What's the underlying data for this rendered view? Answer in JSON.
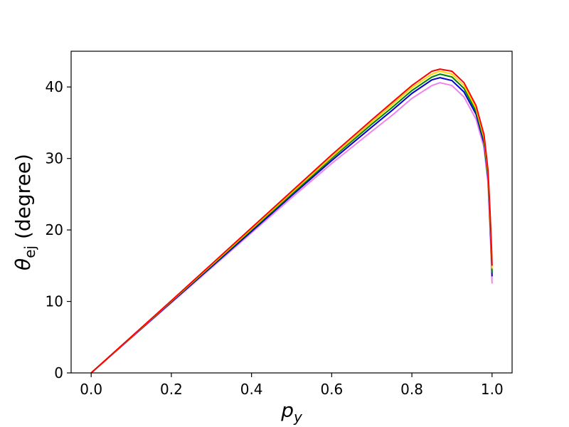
{
  "chart_data": {
    "type": "line",
    "xlabel": {
      "base": "p",
      "sub": "y"
    },
    "ylabel": {
      "base": "θ",
      "sub": "ej",
      "rest": " (degree)"
    },
    "xlim": [
      -0.05,
      1.05
    ],
    "ylim": [
      0,
      45
    ],
    "xticks": [
      0.0,
      0.2,
      0.4,
      0.6,
      0.8,
      1.0
    ],
    "xtick_labels": [
      "0.0",
      "0.2",
      "0.4",
      "0.6",
      "0.8",
      "1.0"
    ],
    "yticks": [
      0,
      10,
      20,
      30,
      40
    ],
    "ytick_labels": [
      "0",
      "10",
      "20",
      "30",
      "40"
    ],
    "grid": false,
    "legend": "none",
    "series": [
      {
        "color": "#ee82ee",
        "points": [
          [
            0.0,
            0.0
          ],
          [
            0.1,
            4.9
          ],
          [
            0.2,
            9.8
          ],
          [
            0.3,
            14.7
          ],
          [
            0.4,
            19.6
          ],
          [
            0.5,
            24.5
          ],
          [
            0.6,
            29.3
          ],
          [
            0.7,
            33.8
          ],
          [
            0.75,
            36.0
          ],
          [
            0.8,
            38.4
          ],
          [
            0.85,
            40.2
          ],
          [
            0.87,
            40.6
          ],
          [
            0.9,
            40.2
          ],
          [
            0.93,
            38.6
          ],
          [
            0.96,
            35.5
          ],
          [
            0.98,
            31.5
          ],
          [
            0.99,
            26.5
          ],
          [
            0.995,
            20.0
          ],
          [
            0.999,
            14.5
          ],
          [
            1.0,
            12.5
          ]
        ]
      },
      {
        "color": "#0000cd",
        "points": [
          [
            0.0,
            0.0
          ],
          [
            0.1,
            4.95
          ],
          [
            0.2,
            9.9
          ],
          [
            0.3,
            14.85
          ],
          [
            0.4,
            19.8
          ],
          [
            0.5,
            24.8
          ],
          [
            0.6,
            29.7
          ],
          [
            0.7,
            34.4
          ],
          [
            0.75,
            36.7
          ],
          [
            0.8,
            39.1
          ],
          [
            0.85,
            41.0
          ],
          [
            0.87,
            41.3
          ],
          [
            0.9,
            40.9
          ],
          [
            0.93,
            39.3
          ],
          [
            0.96,
            36.2
          ],
          [
            0.98,
            32.1
          ],
          [
            0.99,
            27.2
          ],
          [
            0.995,
            21.0
          ],
          [
            0.999,
            15.5
          ],
          [
            1.0,
            13.5
          ]
        ]
      },
      {
        "color": "#008000",
        "points": [
          [
            0.0,
            0.0
          ],
          [
            0.1,
            5.0
          ],
          [
            0.2,
            10.0
          ],
          [
            0.3,
            15.0
          ],
          [
            0.4,
            20.0
          ],
          [
            0.5,
            25.0
          ],
          [
            0.6,
            30.0
          ],
          [
            0.7,
            34.8
          ],
          [
            0.75,
            37.1
          ],
          [
            0.8,
            39.5
          ],
          [
            0.85,
            41.4
          ],
          [
            0.87,
            41.8
          ],
          [
            0.9,
            41.4
          ],
          [
            0.93,
            39.8
          ],
          [
            0.96,
            36.6
          ],
          [
            0.98,
            32.5
          ],
          [
            0.99,
            27.5
          ],
          [
            0.995,
            21.5
          ],
          [
            0.999,
            16.0
          ],
          [
            1.0,
            14.0
          ]
        ]
      },
      {
        "color": "#ffd700",
        "points": [
          [
            0.0,
            0.0
          ],
          [
            0.1,
            5.02
          ],
          [
            0.2,
            10.05
          ],
          [
            0.3,
            15.1
          ],
          [
            0.4,
            20.15
          ],
          [
            0.5,
            25.2
          ],
          [
            0.6,
            30.2
          ],
          [
            0.7,
            35.1
          ],
          [
            0.75,
            37.5
          ],
          [
            0.8,
            39.9
          ],
          [
            0.85,
            41.8
          ],
          [
            0.87,
            42.2
          ],
          [
            0.9,
            41.8
          ],
          [
            0.93,
            40.2
          ],
          [
            0.96,
            37.0
          ],
          [
            0.98,
            32.9
          ],
          [
            0.99,
            27.9
          ],
          [
            0.995,
            22.0
          ],
          [
            0.999,
            16.5
          ],
          [
            1.0,
            14.6
          ]
        ]
      },
      {
        "color": "#ff0000",
        "points": [
          [
            0.0,
            0.0
          ],
          [
            0.1,
            5.05
          ],
          [
            0.2,
            10.1
          ],
          [
            0.3,
            15.2
          ],
          [
            0.4,
            20.3
          ],
          [
            0.5,
            25.4
          ],
          [
            0.6,
            30.5
          ],
          [
            0.7,
            35.4
          ],
          [
            0.75,
            37.8
          ],
          [
            0.8,
            40.2
          ],
          [
            0.85,
            42.2
          ],
          [
            0.87,
            42.5
          ],
          [
            0.9,
            42.2
          ],
          [
            0.93,
            40.6
          ],
          [
            0.96,
            37.4
          ],
          [
            0.98,
            33.3
          ],
          [
            0.99,
            28.3
          ],
          [
            0.995,
            22.5
          ],
          [
            0.999,
            17.0
          ],
          [
            1.0,
            15.0
          ]
        ]
      }
    ]
  }
}
